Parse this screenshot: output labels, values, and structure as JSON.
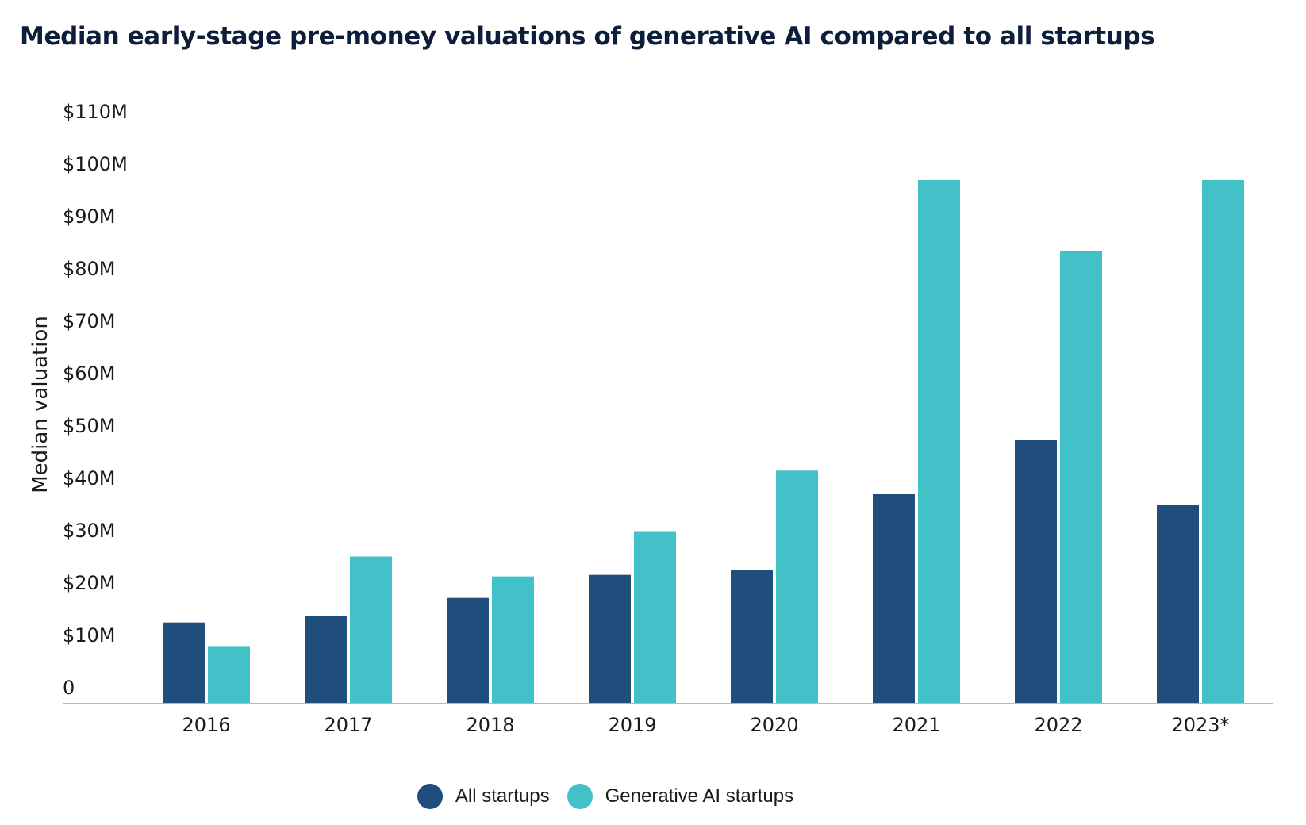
{
  "chart_data": {
    "type": "bar",
    "title": "Median early-stage pre-money valuations of generative AI compared to all startups",
    "ylabel": "Median valuation",
    "xlabel": "",
    "categories": [
      "2016",
      "2017",
      "2018",
      "2019",
      "2020",
      "2021",
      "2022",
      "2023*"
    ],
    "series": [
      {
        "name": "All startups",
        "color": "#1f4e7d",
        "values": [
          15.5,
          16.8,
          20.2,
          24.6,
          25.5,
          40.0,
          50.3,
          38.0
        ]
      },
      {
        "name": "Generative AI startups",
        "color": "#42c1c8",
        "values": [
          11.0,
          28.1,
          24.3,
          32.8,
          44.5,
          100.0,
          86.4,
          100.0
        ]
      }
    ],
    "yticks": [
      "0",
      "$10M",
      "$20M",
      "$30M",
      "$40M",
      "$50M",
      "$60M",
      "$70M",
      "$80M",
      "$90M",
      "$100M",
      "$110M"
    ],
    "ylim": [
      0,
      110
    ],
    "grid": false,
    "legend_position": "bottom-center"
  }
}
